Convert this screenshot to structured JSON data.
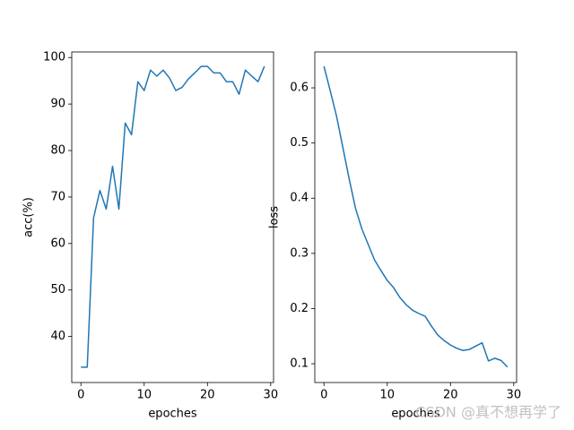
{
  "chart_data": [
    {
      "type": "line",
      "xlabel": "epoches",
      "ylabel": "acc(%)",
      "color": "#1f77b4",
      "x": [
        0,
        1,
        2,
        3,
        4,
        5,
        6,
        7,
        8,
        9,
        10,
        11,
        12,
        13,
        14,
        15,
        16,
        17,
        18,
        19,
        20,
        21,
        22,
        23,
        24,
        25,
        26,
        27,
        28,
        29
      ],
      "values": [
        33.4,
        33.4,
        65.5,
        71.4,
        67.4,
        76.6,
        67.4,
        85.9,
        83.4,
        94.8,
        92.9,
        97.3,
        96.0,
        97.3,
        95.6,
        92.9,
        93.6,
        95.4,
        96.7,
        98.1,
        98.1,
        96.7,
        96.7,
        94.8,
        94.8,
        92.1,
        97.3,
        96.0,
        94.8,
        98.1
      ],
      "xlim": [
        -1.45,
        30.45
      ],
      "xticks": [
        0,
        10,
        20,
        30
      ],
      "ylim": [
        30.1,
        101.2
      ],
      "yticks": [
        40,
        50,
        60,
        70,
        80,
        90,
        100
      ]
    },
    {
      "type": "line",
      "xlabel": "epoches",
      "ylabel": "loss",
      "color": "#1f77b4",
      "x": [
        0,
        1,
        2,
        3,
        4,
        5,
        6,
        7,
        8,
        9,
        10,
        11,
        12,
        13,
        14,
        15,
        16,
        17,
        18,
        19,
        20,
        21,
        22,
        23,
        24,
        25,
        26,
        27,
        28,
        29
      ],
      "values": [
        0.639,
        0.594,
        0.548,
        0.491,
        0.434,
        0.381,
        0.344,
        0.316,
        0.288,
        0.269,
        0.251,
        0.238,
        0.22,
        0.207,
        0.197,
        0.191,
        0.186,
        0.168,
        0.152,
        0.142,
        0.134,
        0.128,
        0.124,
        0.126,
        0.132,
        0.138,
        0.105,
        0.11,
        0.106,
        0.094
      ],
      "xlim": [
        -1.45,
        30.45
      ],
      "xticks": [
        0,
        10,
        20,
        30
      ],
      "ylim": [
        0.066,
        0.665
      ],
      "yticks": [
        0.1,
        0.2,
        0.3,
        0.4,
        0.5,
        0.6
      ]
    }
  ],
  "watermark": "CSDN @真不想再学了"
}
